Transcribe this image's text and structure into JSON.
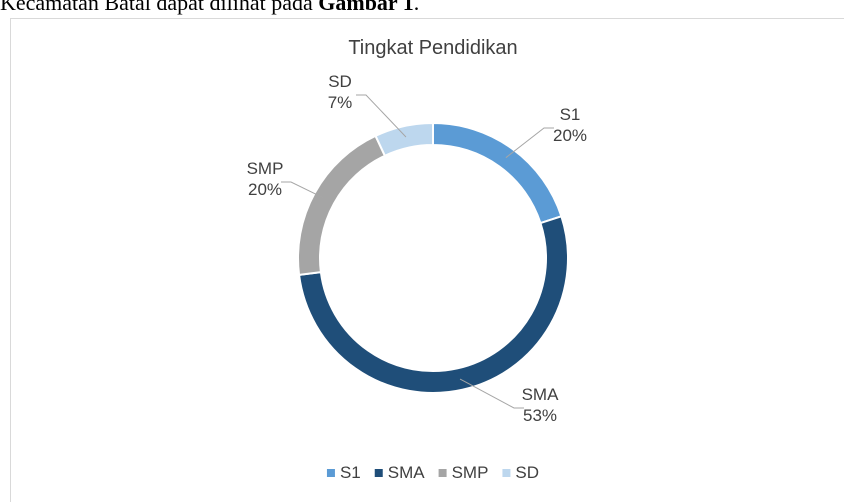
{
  "text_above": {
    "plain": "Kecamatan Batal dapat dilihat pada",
    "bold": "Gambar 1",
    "end": "."
  },
  "chart_data": {
    "type": "donut",
    "title": "Tingkat Pendidikan",
    "categories": [
      "S1",
      "SMA",
      "SMP",
      "SD"
    ],
    "values": [
      20,
      53,
      20,
      7
    ],
    "value_labels": [
      "20%",
      "53%",
      "20%",
      "7%"
    ],
    "colors": [
      "#5b9bd5",
      "#1f4e79",
      "#a5a5a5",
      "#bdd7ee"
    ],
    "legend": "bottom"
  }
}
